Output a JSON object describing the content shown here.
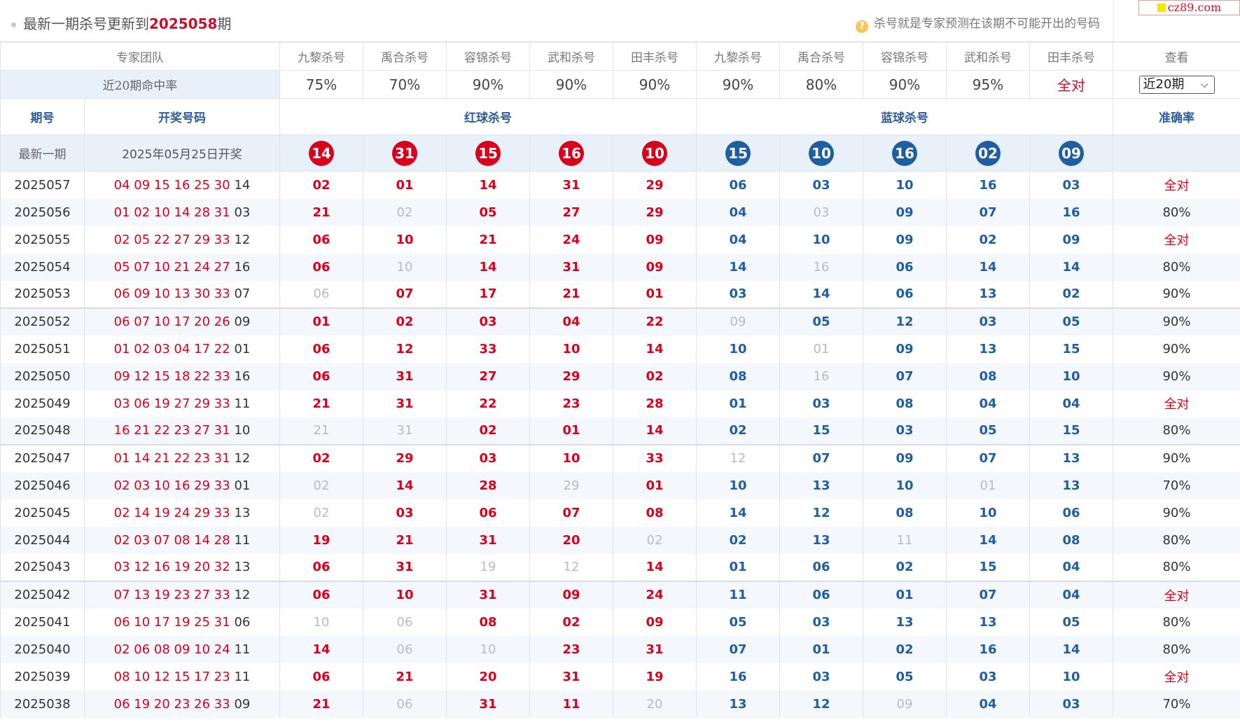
{
  "title": {
    "prefix": "最新一期杀号更新到",
    "issue": "2025058",
    "suffix": "期",
    "hint": "杀号就是专家预测在该期不可能开出的号码"
  },
  "watermark": "cz89.com",
  "experts_header": {
    "label": "专家团队",
    "columns": [
      "九黎杀号",
      "禹合杀号",
      "容锦杀号",
      "武和杀号",
      "田丰杀号",
      "九黎杀号",
      "禹合杀号",
      "容锦杀号",
      "武和杀号",
      "田丰杀号"
    ],
    "view": "查看"
  },
  "hit_rate": {
    "label": "近20期命中率",
    "values": [
      "75%",
      "70%",
      "90%",
      "90%",
      "90%",
      "90%",
      "80%",
      "90%",
      "95%",
      "全对"
    ],
    "select_value": "近20期"
  },
  "table_header": {
    "issue": "期号",
    "draw": "开奖号码",
    "red": "红球杀号",
    "blue": "蓝球杀号",
    "accuracy": "准确率"
  },
  "latest": {
    "label": "最新一期",
    "date": "2025年05月25日开奖",
    "red_kills": [
      "14",
      "31",
      "15",
      "16",
      "10"
    ],
    "blue_kills": [
      "15",
      "10",
      "16",
      "02",
      "09"
    ]
  },
  "rows": [
    {
      "issue": "2025057",
      "red": "04 09 15 16 25 30",
      "blue": "14",
      "kills": [
        "02",
        "01",
        "14",
        "31",
        "29",
        "06",
        "03",
        "10",
        "16",
        "03"
      ],
      "miss": [],
      "acc": "全对"
    },
    {
      "issue": "2025056",
      "red": "01 02 10 14 28 31",
      "blue": "03",
      "kills": [
        "21",
        "02",
        "05",
        "27",
        "29",
        "04",
        "03",
        "09",
        "07",
        "16"
      ],
      "miss": [
        1,
        6
      ],
      "acc": "80%"
    },
    {
      "issue": "2025055",
      "red": "02 05 22 27 29 33",
      "blue": "12",
      "kills": [
        "06",
        "10",
        "21",
        "24",
        "09",
        "04",
        "10",
        "09",
        "02",
        "09"
      ],
      "miss": [],
      "acc": "全对"
    },
    {
      "issue": "2025054",
      "red": "05 07 10 21 24 27",
      "blue": "16",
      "kills": [
        "06",
        "10",
        "14",
        "31",
        "09",
        "14",
        "16",
        "06",
        "14",
        "14"
      ],
      "miss": [
        1,
        6
      ],
      "acc": "80%"
    },
    {
      "issue": "2025053",
      "red": "06 09 10 13 30 33",
      "blue": "07",
      "kills": [
        "06",
        "07",
        "17",
        "21",
        "01",
        "03",
        "14",
        "06",
        "13",
        "02"
      ],
      "miss": [
        0
      ],
      "acc": "90%"
    },
    {
      "issue": "2025052",
      "red": "06 07 10 17 20 26",
      "blue": "09",
      "kills": [
        "01",
        "02",
        "03",
        "04",
        "22",
        "09",
        "05",
        "12",
        "03",
        "05"
      ],
      "miss": [
        5
      ],
      "acc": "90%"
    },
    {
      "issue": "2025051",
      "red": "01 02 03 04 17 22",
      "blue": "01",
      "kills": [
        "06",
        "12",
        "33",
        "10",
        "14",
        "10",
        "01",
        "09",
        "13",
        "15"
      ],
      "miss": [
        6
      ],
      "acc": "90%"
    },
    {
      "issue": "2025050",
      "red": "09 12 15 18 22 33",
      "blue": "16",
      "kills": [
        "06",
        "31",
        "27",
        "29",
        "02",
        "08",
        "16",
        "07",
        "08",
        "10"
      ],
      "miss": [
        6
      ],
      "acc": "90%"
    },
    {
      "issue": "2025049",
      "red": "03 06 19 27 29 33",
      "blue": "11",
      "kills": [
        "21",
        "31",
        "22",
        "23",
        "28",
        "01",
        "03",
        "08",
        "04",
        "04"
      ],
      "miss": [],
      "acc": "全对"
    },
    {
      "issue": "2025048",
      "red": "16 21 22 23 27 31",
      "blue": "10",
      "kills": [
        "21",
        "31",
        "02",
        "01",
        "14",
        "02",
        "15",
        "03",
        "05",
        "15"
      ],
      "miss": [
        0,
        1
      ],
      "acc": "80%"
    },
    {
      "issue": "2025047",
      "red": "01 14 21 22 23 31",
      "blue": "12",
      "kills": [
        "02",
        "29",
        "03",
        "10",
        "33",
        "12",
        "07",
        "09",
        "07",
        "13"
      ],
      "miss": [
        5
      ],
      "acc": "90%"
    },
    {
      "issue": "2025046",
      "red": "02 03 10 16 29 33",
      "blue": "01",
      "kills": [
        "02",
        "14",
        "28",
        "29",
        "01",
        "10",
        "13",
        "10",
        "01",
        "13"
      ],
      "miss": [
        0,
        3,
        8
      ],
      "acc": "70%"
    },
    {
      "issue": "2025045",
      "red": "02 14 19 24 29 33",
      "blue": "13",
      "kills": [
        "02",
        "03",
        "06",
        "07",
        "08",
        "14",
        "12",
        "08",
        "10",
        "06"
      ],
      "miss": [
        0
      ],
      "acc": "90%"
    },
    {
      "issue": "2025044",
      "red": "02 03 07 08 14 28",
      "blue": "11",
      "kills": [
        "19",
        "21",
        "31",
        "20",
        "02",
        "02",
        "13",
        "11",
        "14",
        "08"
      ],
      "miss": [
        4,
        7
      ],
      "acc": "80%"
    },
    {
      "issue": "2025043",
      "red": "03 12 16 19 20 32",
      "blue": "13",
      "kills": [
        "06",
        "31",
        "19",
        "12",
        "14",
        "01",
        "06",
        "02",
        "15",
        "04"
      ],
      "miss": [
        2,
        3
      ],
      "acc": "80%"
    },
    {
      "issue": "2025042",
      "red": "07 13 19 23 27 33",
      "blue": "12",
      "kills": [
        "06",
        "10",
        "31",
        "09",
        "24",
        "11",
        "06",
        "01",
        "07",
        "04"
      ],
      "miss": [],
      "acc": "全对"
    },
    {
      "issue": "2025041",
      "red": "06 10 17 19 25 31",
      "blue": "06",
      "kills": [
        "10",
        "06",
        "08",
        "02",
        "09",
        "05",
        "03",
        "13",
        "13",
        "05"
      ],
      "miss": [
        0,
        1
      ],
      "acc": "80%"
    },
    {
      "issue": "2025040",
      "red": "02 06 08 09 10 24",
      "blue": "11",
      "kills": [
        "14",
        "06",
        "10",
        "23",
        "31",
        "07",
        "01",
        "02",
        "16",
        "14"
      ],
      "miss": [
        1,
        2
      ],
      "acc": "80%"
    },
    {
      "issue": "2025039",
      "red": "08 10 12 15 17 23",
      "blue": "11",
      "kills": [
        "06",
        "21",
        "20",
        "31",
        "19",
        "16",
        "03",
        "05",
        "03",
        "10"
      ],
      "miss": [],
      "acc": "全对"
    },
    {
      "issue": "2025038",
      "red": "06 19 20 23 26 33",
      "blue": "09",
      "kills": [
        "21",
        "06",
        "31",
        "11",
        "20",
        "13",
        "12",
        "09",
        "04",
        "03"
      ],
      "miss": [
        1,
        4,
        7
      ],
      "acc": "70%"
    }
  ]
}
